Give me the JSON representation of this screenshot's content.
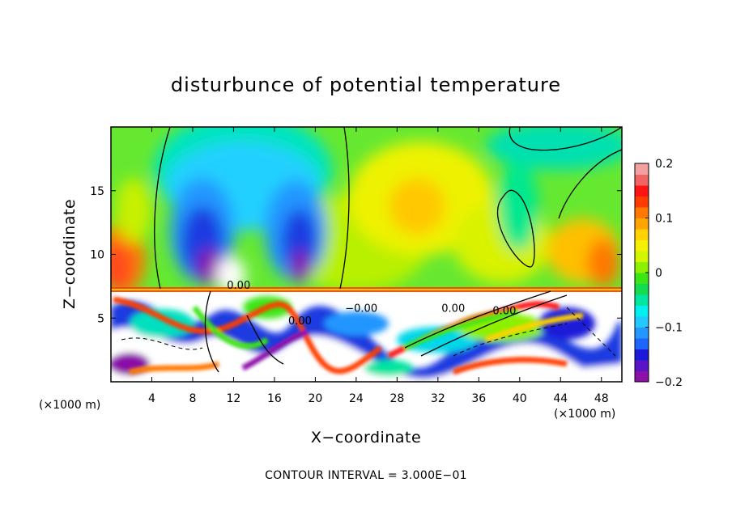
{
  "chart_data": {
    "type": "heatmap",
    "title": "disturbunce of potential temperature",
    "xlabel": "X−coordinate",
    "ylabel": "Z−coordinate",
    "xlim": [
      0,
      50
    ],
    "ylim": [
      0,
      20
    ],
    "x_ticks": [
      4,
      8,
      12,
      16,
      20,
      24,
      28,
      32,
      36,
      40,
      44,
      48
    ],
    "y_ticks": [
      5,
      10,
      15
    ],
    "x_unit_left": "(×1000 m)",
    "x_unit_right": "(×1000 m)",
    "contour_interval_text": "CONTOUR INTERVAL = 3.000E−01",
    "contour_labels": [
      {
        "text": "0.00",
        "x": 12.5,
        "z": 7.3
      },
      {
        "text": "0.00",
        "x": 18.5,
        "z": 4.5
      },
      {
        "text": "−0.00",
        "x": 24.5,
        "z": 5.5
      },
      {
        "text": "0.00",
        "x": 33.5,
        "z": 5.5
      },
      {
        "text": "0.00",
        "x": 38.5,
        "z": 5.3
      }
    ],
    "colorbar": {
      "range": [
        -0.2,
        0.2
      ],
      "tick_labels": [
        "0.2",
        "0.1",
        "0",
        "−0.1",
        "−0.2"
      ],
      "tick_values": [
        0.2,
        0.1,
        0,
        -0.1,
        -0.2
      ],
      "colors": [
        "#8b10a8",
        "#5a14c8",
        "#1a1ad8",
        "#1e64ff",
        "#2496ff",
        "#22c8ff",
        "#00f0f0",
        "#00e6a0",
        "#14dc50",
        "#3ce614",
        "#8cf000",
        "#d2f500",
        "#f5f000",
        "#ffd200",
        "#ffa500",
        "#ff7800",
        "#ff3c00",
        "#ff1414",
        "#f06464",
        "#f5a0a0"
      ]
    }
  }
}
